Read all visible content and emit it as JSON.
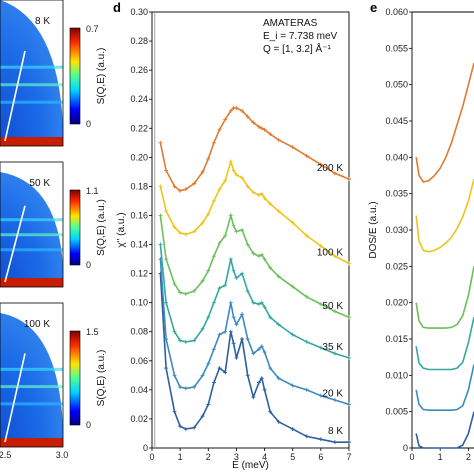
{
  "chart_data": [
    {
      "panel": "",
      "type": "heatmap",
      "colorbar_label": "S(Q,E) (a.u.)",
      "maps": [
        {
          "name": "8 K",
          "colorbar_max": "0.7",
          "colorbar_min": "0"
        },
        {
          "name": "50 K",
          "colorbar_max": "1.1",
          "colorbar_min": "0"
        },
        {
          "name": "100 K",
          "colorbar_max": "1.5",
          "colorbar_min": "0"
        }
      ],
      "x_ticks": [
        "2.5",
        "3.0"
      ],
      "colormap": "jet"
    },
    {
      "panel": "d",
      "type": "line",
      "annotation": [
        "AMATERAS",
        "E_i = 7.738 meV",
        "Q = [1, 3.2] Å⁻¹"
      ],
      "xlabel": "E (meV)",
      "ylabel": "χ'' (a.u.)",
      "xlim": [
        0,
        7
      ],
      "ylim": [
        0,
        0.3
      ],
      "x_ticks": [
        "0",
        "1",
        "2",
        "3",
        "4",
        "5",
        "6",
        "7"
      ],
      "y_ticks": [
        "0",
        "0.02",
        "0.04",
        "0.06",
        "0.08",
        "0.10",
        "0.12",
        "0.14",
        "0.16",
        "0.18",
        "0.20",
        "0.22",
        "0.24",
        "0.26",
        "0.28",
        "0.30"
      ],
      "x": [
        0.3,
        0.5,
        0.8,
        1.0,
        1.2,
        1.5,
        1.8,
        2.0,
        2.2,
        2.4,
        2.6,
        2.8,
        2.9,
        3.0,
        3.2,
        3.4,
        3.6,
        3.8,
        3.9,
        4.0,
        4.2,
        4.5,
        5.0,
        5.5,
        6.0,
        6.5,
        7.0
      ],
      "series": [
        {
          "name": "8 K",
          "color": "#2e5f9e",
          "values": [
            0.12,
            0.055,
            0.025,
            0.015,
            0.013,
            0.014,
            0.022,
            0.03,
            0.045,
            0.055,
            0.052,
            0.08,
            0.072,
            0.062,
            0.075,
            0.05,
            0.035,
            0.045,
            0.048,
            0.04,
            0.025,
            0.018,
            0.013,
            0.008,
            0.006,
            0.004,
            0.004
          ]
        },
        {
          "name": "20 K",
          "color": "#3b8bbd",
          "values": [
            0.13,
            0.075,
            0.05,
            0.042,
            0.041,
            0.042,
            0.05,
            0.058,
            0.068,
            0.078,
            0.08,
            0.1,
            0.09,
            0.085,
            0.092,
            0.075,
            0.065,
            0.068,
            0.07,
            0.066,
            0.055,
            0.048,
            0.043,
            0.04,
            0.036,
            0.033,
            0.03
          ]
        },
        {
          "name": "35 K",
          "color": "#35a7a0",
          "values": [
            0.14,
            0.1,
            0.08,
            0.074,
            0.073,
            0.074,
            0.082,
            0.09,
            0.1,
            0.11,
            0.112,
            0.13,
            0.122,
            0.117,
            0.12,
            0.108,
            0.1,
            0.099,
            0.1,
            0.097,
            0.09,
            0.085,
            0.078,
            0.073,
            0.069,
            0.065,
            0.062
          ]
        },
        {
          "name": "50 K",
          "color": "#6cbf5a",
          "values": [
            0.16,
            0.13,
            0.113,
            0.107,
            0.106,
            0.108,
            0.115,
            0.122,
            0.132,
            0.141,
            0.146,
            0.16,
            0.153,
            0.149,
            0.15,
            0.14,
            0.134,
            0.132,
            0.133,
            0.13,
            0.124,
            0.118,
            0.111,
            0.104,
            0.099,
            0.094,
            0.09
          ]
        },
        {
          "name": "100 K",
          "color": "#eec41b",
          "values": [
            0.18,
            0.163,
            0.152,
            0.148,
            0.147,
            0.149,
            0.155,
            0.161,
            0.17,
            0.178,
            0.184,
            0.197,
            0.191,
            0.188,
            0.186,
            0.18,
            0.176,
            0.174,
            0.175,
            0.172,
            0.168,
            0.163,
            0.155,
            0.146,
            0.139,
            0.132,
            0.127
          ]
        },
        {
          "name": "200 K",
          "color": "#e07b30",
          "values": [
            0.21,
            0.191,
            0.18,
            0.177,
            0.178,
            0.182,
            0.19,
            0.199,
            0.21,
            0.219,
            0.226,
            0.232,
            0.234,
            0.234,
            0.232,
            0.228,
            0.224,
            0.221,
            0.22,
            0.219,
            0.216,
            0.212,
            0.207,
            0.201,
            0.195,
            0.189,
            0.185
          ]
        }
      ]
    },
    {
      "panel": "e",
      "type": "line",
      "ylabel": "DOS/E (a.u.)",
      "ylim": [
        0,
        0.06
      ],
      "y_ticks": [
        "0",
        "0.005",
        "0.010",
        "0.015",
        "0.020",
        "0.025",
        "0.030",
        "0.035",
        "0.040",
        "0.045",
        "0.050",
        "0.055",
        "0.060"
      ],
      "x_ticks": [
        "0",
        "1",
        "2"
      ],
      "xlim": [
        0,
        2.2
      ],
      "x": [
        0.15,
        0.25,
        0.4,
        0.6,
        0.8,
        1.0,
        1.2,
        1.4,
        1.6,
        1.8,
        2.0,
        2.2
      ],
      "series": [
        {
          "name": "8 K",
          "color": "#2e5f9e",
          "values": [
            0.002,
            0.0003,
            0.0,
            0.0,
            0.0,
            0.0,
            0.0,
            0.0,
            0.0,
            0.0004,
            0.002,
            0.005
          ]
        },
        {
          "name": "20 K",
          "color": "#3b8bbd",
          "values": [
            0.008,
            0.006,
            0.0053,
            0.0052,
            0.0052,
            0.0052,
            0.0052,
            0.0052,
            0.0053,
            0.0058,
            0.008,
            0.0115
          ]
        },
        {
          "name": "35 K",
          "color": "#35a7a0",
          "values": [
            0.014,
            0.0117,
            0.011,
            0.0108,
            0.0108,
            0.0108,
            0.0108,
            0.0108,
            0.011,
            0.0118,
            0.0145,
            0.018
          ]
        },
        {
          "name": "50 K",
          "color": "#6cbf5a",
          "values": [
            0.02,
            0.0175,
            0.0166,
            0.0165,
            0.0165,
            0.0165,
            0.0165,
            0.0166,
            0.017,
            0.0182,
            0.021,
            0.025
          ]
        },
        {
          "name": "100 K",
          "color": "#eec41b",
          "values": [
            0.032,
            0.0285,
            0.0272,
            0.027,
            0.0272,
            0.0276,
            0.0282,
            0.029,
            0.0302,
            0.0318,
            0.034,
            0.037
          ]
        },
        {
          "name": "200 K",
          "color": "#e07b30",
          "values": [
            0.04,
            0.0375,
            0.0366,
            0.0368,
            0.0375,
            0.0385,
            0.04,
            0.042,
            0.0445,
            0.047,
            0.05,
            0.053
          ]
        }
      ]
    }
  ]
}
